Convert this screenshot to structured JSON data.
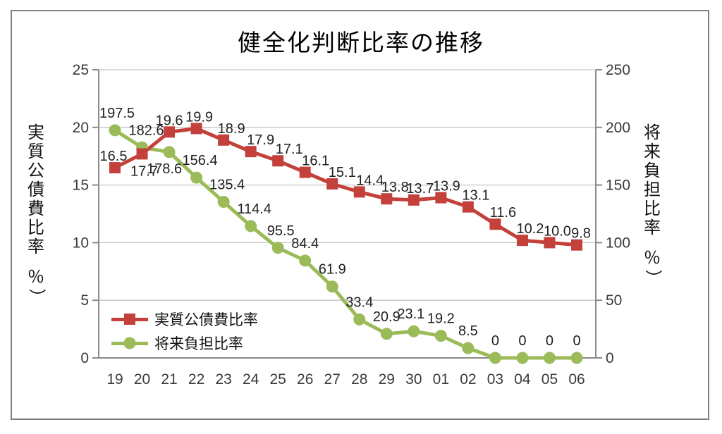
{
  "chart_data": {
    "type": "line",
    "title": "健全化判断比率の推移",
    "categories": [
      "19",
      "20",
      "21",
      "22",
      "23",
      "24",
      "25",
      "26",
      "27",
      "28",
      "29",
      "30",
      "01",
      "02",
      "03",
      "04",
      "05",
      "06"
    ],
    "series": [
      {
        "name": "実質公債費比率",
        "axis": "left",
        "color": "#c4403a",
        "marker": "square",
        "values": [
          16.5,
          17.7,
          19.6,
          19.9,
          18.9,
          17.9,
          17.1,
          16.1,
          15.1,
          14.4,
          13.8,
          13.7,
          13.9,
          13.1,
          11.6,
          10.2,
          10.0,
          9.8
        ],
        "value_labels": [
          "16.5",
          "17.7",
          "19.6",
          "19.9",
          "18.9",
          "17.9",
          "17.1",
          "16.1",
          "15.1",
          "14.4",
          "13.8",
          "13.7",
          "13.9",
          "13.1",
          "11.6",
          "10.2",
          "10.0",
          "9.8"
        ],
        "label_pos": [
          "above",
          "below",
          "above",
          "above",
          "above",
          "above",
          "above",
          "above",
          "above",
          "above",
          "above",
          "above",
          "above",
          "above",
          "above",
          "above",
          "above",
          "above"
        ],
        "label_dx": [
          -2,
          3,
          0,
          4,
          11,
          14,
          16,
          15,
          14,
          15,
          12,
          9,
          8,
          11,
          11,
          11,
          11,
          6
        ]
      },
      {
        "name": "将来負担比率",
        "axis": "right",
        "color": "#9bbb59",
        "marker": "circle",
        "values": [
          197.5,
          182.6,
          178.6,
          156.4,
          135.4,
          114.4,
          95.5,
          84.4,
          61.9,
          33.4,
          20.9,
          23.1,
          19.2,
          8.5,
          0,
          0,
          0,
          0
        ],
        "value_labels": [
          "197.5",
          "182.6",
          "178.6",
          "156.4",
          "135.4",
          "114.4",
          "95.5",
          "84.4",
          "61.9",
          "33.4",
          "20.9",
          "23.1",
          "19.2",
          "8.5",
          "0",
          "0",
          "0",
          "0"
        ],
        "label_pos": [
          "above",
          "above",
          "below",
          "above",
          "above",
          "above",
          "above",
          "above",
          "above",
          "above",
          "above",
          "above",
          "above",
          "above",
          "above",
          "above",
          "above",
          "above"
        ],
        "label_dx": [
          3,
          6,
          -7,
          5,
          5,
          5,
          4,
          0,
          0,
          0,
          0,
          -4,
          0,
          0,
          0,
          0,
          0,
          0
        ]
      }
    ],
    "left_axis": {
      "label": "実質公債費比率",
      "unit": "％）",
      "min": 0,
      "max": 25,
      "ticks": [
        25,
        20,
        15,
        10,
        5,
        0
      ]
    },
    "right_axis": {
      "label": "将来負担比率",
      "unit": "％）",
      "min": 0,
      "max": 250,
      "ticks": [
        250,
        200,
        150,
        100,
        50,
        0
      ]
    },
    "legend": {
      "position": "inside-bottom-left",
      "entries": [
        {
          "label": "実質公債費比率",
          "marker": "square",
          "color": "#c4403a"
        },
        {
          "label": "将来負担比率",
          "marker": "circle",
          "color": "#9bbb59"
        }
      ]
    },
    "grid": true,
    "colors": {
      "grid": "#c6c6c6",
      "axis": "#8a8a8a",
      "tick_text": "#3a3a3a",
      "data_label": "#1f1f1f",
      "frame": "#7f7f7f",
      "background": "#ffffff"
    }
  }
}
